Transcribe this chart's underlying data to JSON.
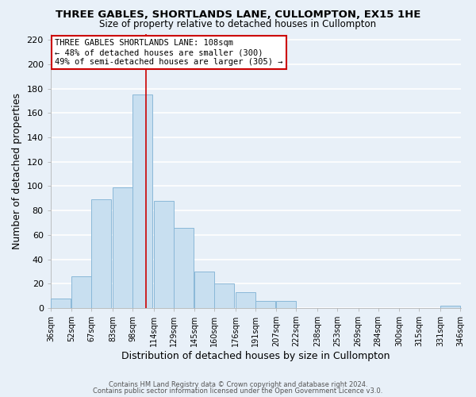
{
  "title": "THREE GABLES, SHORTLANDS LANE, CULLOMPTON, EX15 1HE",
  "subtitle": "Size of property relative to detached houses in Cullompton",
  "xlabel": "Distribution of detached houses by size in Cullompton",
  "ylabel": "Number of detached properties",
  "bar_color": "#c8dff0",
  "bar_edge_color": "#8ab8d8",
  "background_color": "#e8f0f8",
  "grid_color": "white",
  "bins_left": [
    36,
    52,
    67,
    83,
    98,
    114,
    129,
    145,
    160,
    176,
    191,
    207,
    222,
    238,
    253,
    269,
    284,
    300,
    315,
    331
  ],
  "bin_width": 15,
  "values": [
    8,
    26,
    89,
    99,
    175,
    88,
    66,
    30,
    20,
    13,
    6,
    6,
    0,
    0,
    0,
    0,
    0,
    0,
    0,
    2
  ],
  "tick_labels": [
    "36sqm",
    "52sqm",
    "67sqm",
    "83sqm",
    "98sqm",
    "114sqm",
    "129sqm",
    "145sqm",
    "160sqm",
    "176sqm",
    "191sqm",
    "207sqm",
    "222sqm",
    "238sqm",
    "253sqm",
    "269sqm",
    "284sqm",
    "300sqm",
    "315sqm",
    "331sqm",
    "346sqm"
  ],
  "ylim": [
    0,
    225
  ],
  "yticks": [
    0,
    20,
    40,
    60,
    80,
    100,
    120,
    140,
    160,
    180,
    200,
    220
  ],
  "vline_x": 108,
  "vline_color": "#cc0000",
  "annotation_title": "THREE GABLES SHORTLANDS LANE: 108sqm",
  "annotation_line1": "← 48% of detached houses are smaller (300)",
  "annotation_line2": "49% of semi-detached houses are larger (305) →",
  "annotation_box_color": "white",
  "annotation_box_edge": "#cc0000",
  "footer1": "Contains HM Land Registry data © Crown copyright and database right 2024.",
  "footer2": "Contains public sector information licensed under the Open Government Licence v3.0."
}
